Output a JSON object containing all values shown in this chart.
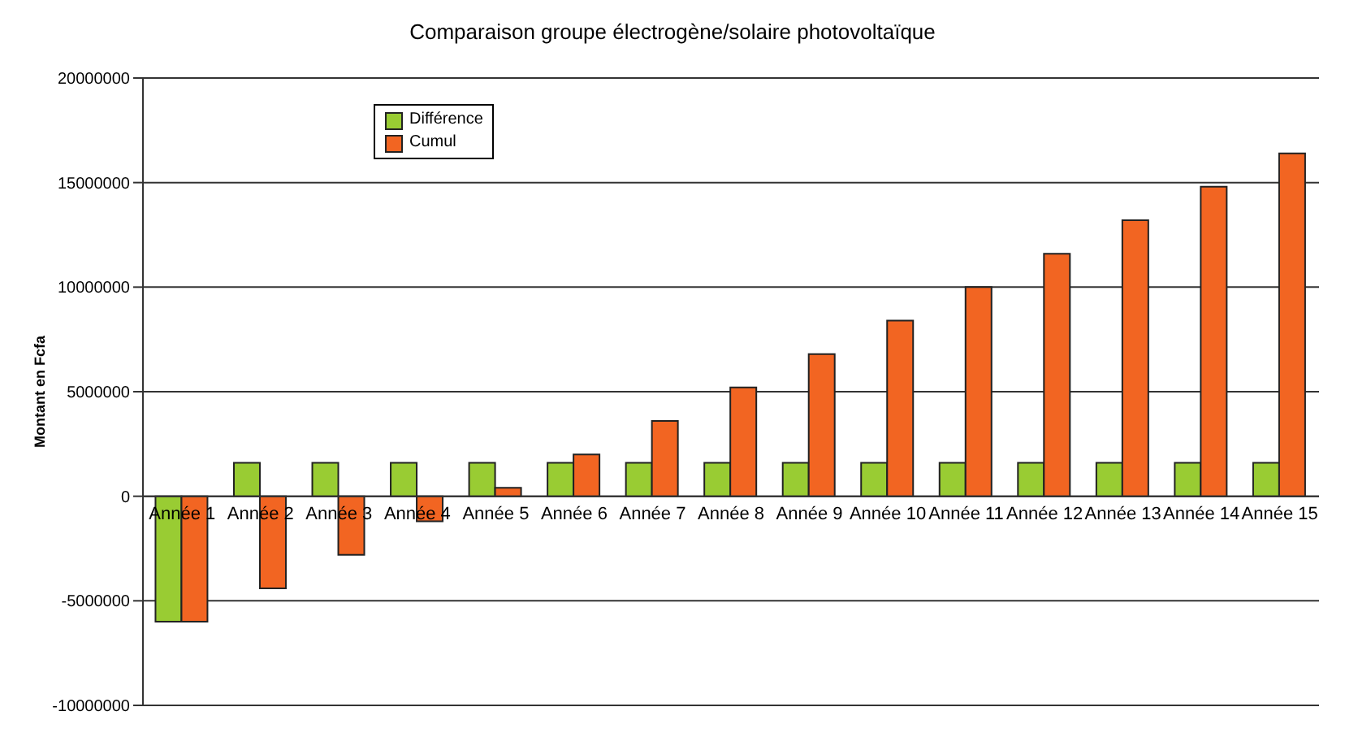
{
  "chart_data": {
    "type": "bar",
    "title": "Comparaison groupe électrogène/solaire photovoltaïque",
    "ylabel": "Montant en Fcfa",
    "categories": [
      "Année 1",
      "Année 2",
      "Année 3",
      "Année 4",
      "Année 5",
      "Année 6",
      "Année 7",
      "Année 8",
      "Année 9",
      "Année 10",
      "Année 11",
      "Année 12",
      "Année 13",
      "Année 14",
      "Année 15"
    ],
    "series": [
      {
        "name": "Différence",
        "color": "#99cc33",
        "values": [
          -6000000,
          1600000,
          1600000,
          1600000,
          1600000,
          1600000,
          1600000,
          1600000,
          1600000,
          1600000,
          1600000,
          1600000,
          1600000,
          1600000,
          1600000
        ]
      },
      {
        "name": "Cumul",
        "color": "#f26522",
        "values": [
          -6000000,
          -4400000,
          -2800000,
          -1200000,
          400000,
          2000000,
          3600000,
          5200000,
          6800000,
          8400000,
          10000000,
          11600000,
          13200000,
          14800000,
          16400000
        ]
      }
    ],
    "ylim": [
      -10000000,
      20000000
    ],
    "yticks": [
      -10000000,
      -5000000,
      0,
      5000000,
      10000000,
      15000000,
      20000000
    ],
    "grid": "y",
    "legend": "top left"
  }
}
